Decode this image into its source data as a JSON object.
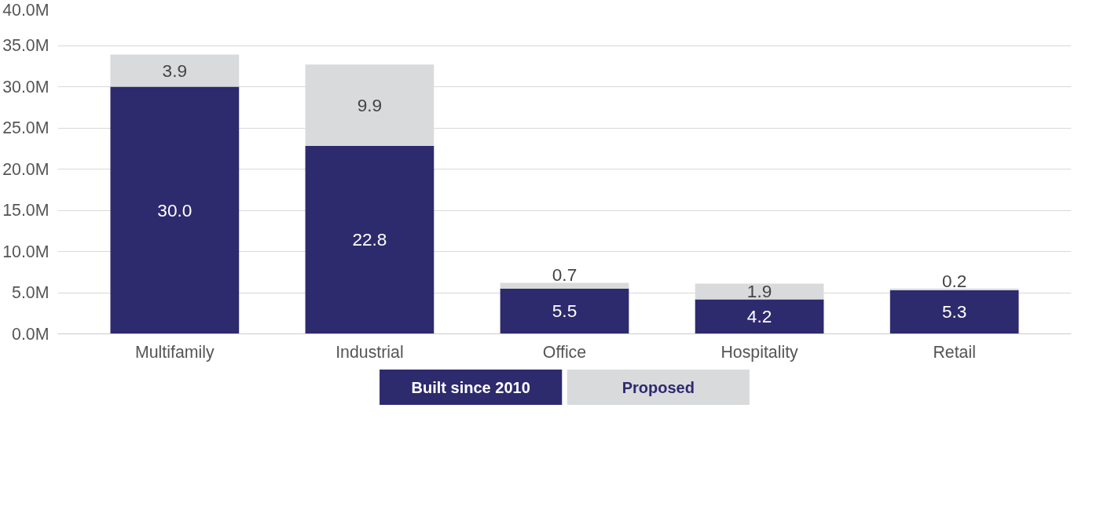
{
  "chart_data": {
    "type": "bar",
    "stacked": true,
    "categories": [
      "Multifamily",
      "Industrial",
      "Office",
      "Hospitality",
      "Retail"
    ],
    "series": [
      {
        "name": "Built since 2010",
        "color": "#2e2a6e",
        "values": [
          30.0,
          22.8,
          5.5,
          4.2,
          5.3
        ],
        "value_labels": [
          "30.0",
          "22.8",
          "5.5",
          "4.2",
          "5.3"
        ]
      },
      {
        "name": "Proposed",
        "color": "#d9dadc",
        "values": [
          3.9,
          9.9,
          0.7,
          1.9,
          0.2
        ],
        "value_labels": [
          "3.9",
          "9.9",
          "0.7",
          "1.9",
          "0.2"
        ]
      }
    ],
    "ylim": [
      0,
      40
    ],
    "yticks": [
      {
        "value": 0,
        "label": "0.0M"
      },
      {
        "value": 5,
        "label": "5.0M"
      },
      {
        "value": 10,
        "label": "10.0M"
      },
      {
        "value": 15,
        "label": "15.0M"
      },
      {
        "value": 20,
        "label": "20.0M"
      },
      {
        "value": 25,
        "label": "25.0M"
      },
      {
        "value": 30,
        "label": "30.0M"
      },
      {
        "value": 35,
        "label": "35.0M"
      },
      {
        "value": 40,
        "label": "40.0M"
      }
    ],
    "grid": "y",
    "legend": "bottom",
    "data_labels": true
  }
}
